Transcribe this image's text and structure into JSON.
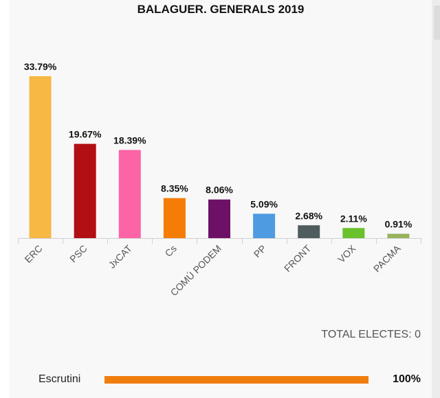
{
  "chart_data": {
    "type": "bar",
    "title": "BALAGUER. GENERALS 2019",
    "categories": [
      "ERC",
      "PSC",
      "JxCAT",
      "Cs",
      "COMÚ PODEM",
      "PP",
      "FRONT",
      "VOX",
      "PACMA"
    ],
    "values": [
      33.79,
      19.67,
      18.39,
      8.35,
      8.06,
      5.09,
      2.68,
      2.11,
      0.91
    ],
    "value_labels": [
      "33.79%",
      "19.67%",
      "18.39%",
      "8.35%",
      "8.06%",
      "5.09%",
      "2.68%",
      "2.11%",
      "0.91%"
    ],
    "colors": [
      "#f7b844",
      "#b20f14",
      "#fd64a5",
      "#f47c07",
      "#6d1166",
      "#4f9be2",
      "#4f5d5e",
      "#69c12c",
      "#98b35c"
    ],
    "ylim": [
      0,
      33.79
    ],
    "grid": false,
    "xlabel": "",
    "ylabel": ""
  },
  "summary": {
    "total_label": "TOTAL ELECTES:",
    "total_value": "0"
  },
  "scrutiny": {
    "label": "Escrutini",
    "percent": 100,
    "percent_text": "100%",
    "bar_color": "#f07d0e"
  }
}
